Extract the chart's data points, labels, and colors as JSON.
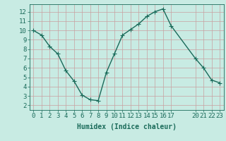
{
  "x": [
    0,
    1,
    2,
    3,
    4,
    5,
    6,
    7,
    8,
    9,
    10,
    11,
    12,
    13,
    14,
    15,
    16,
    17,
    20,
    21,
    22,
    23
  ],
  "y": [
    10,
    9.5,
    8.3,
    7.5,
    5.7,
    4.6,
    3.1,
    2.6,
    2.5,
    5.5,
    7.5,
    9.5,
    10.1,
    10.7,
    11.5,
    12.0,
    12.3,
    10.5,
    7.0,
    6.0,
    4.7,
    4.4
  ],
  "line_color": "#1a6b5a",
  "marker": "+",
  "marker_size": 4,
  "bg_color": "#c8ebe3",
  "grid_color": "#c8a0a0",
  "xlabel": "Humidex (Indice chaleur)",
  "xlim": [
    -0.5,
    23.5
  ],
  "ylim": [
    1.5,
    12.8
  ],
  "xticks": [
    0,
    1,
    2,
    3,
    4,
    5,
    6,
    7,
    8,
    9,
    10,
    11,
    12,
    13,
    14,
    15,
    16,
    17,
    20,
    21,
    22,
    23
  ],
  "yticks": [
    2,
    3,
    4,
    5,
    6,
    7,
    8,
    9,
    10,
    11,
    12
  ],
  "xlabel_fontsize": 7,
  "tick_fontsize": 6.5,
  "line_width": 1.0
}
